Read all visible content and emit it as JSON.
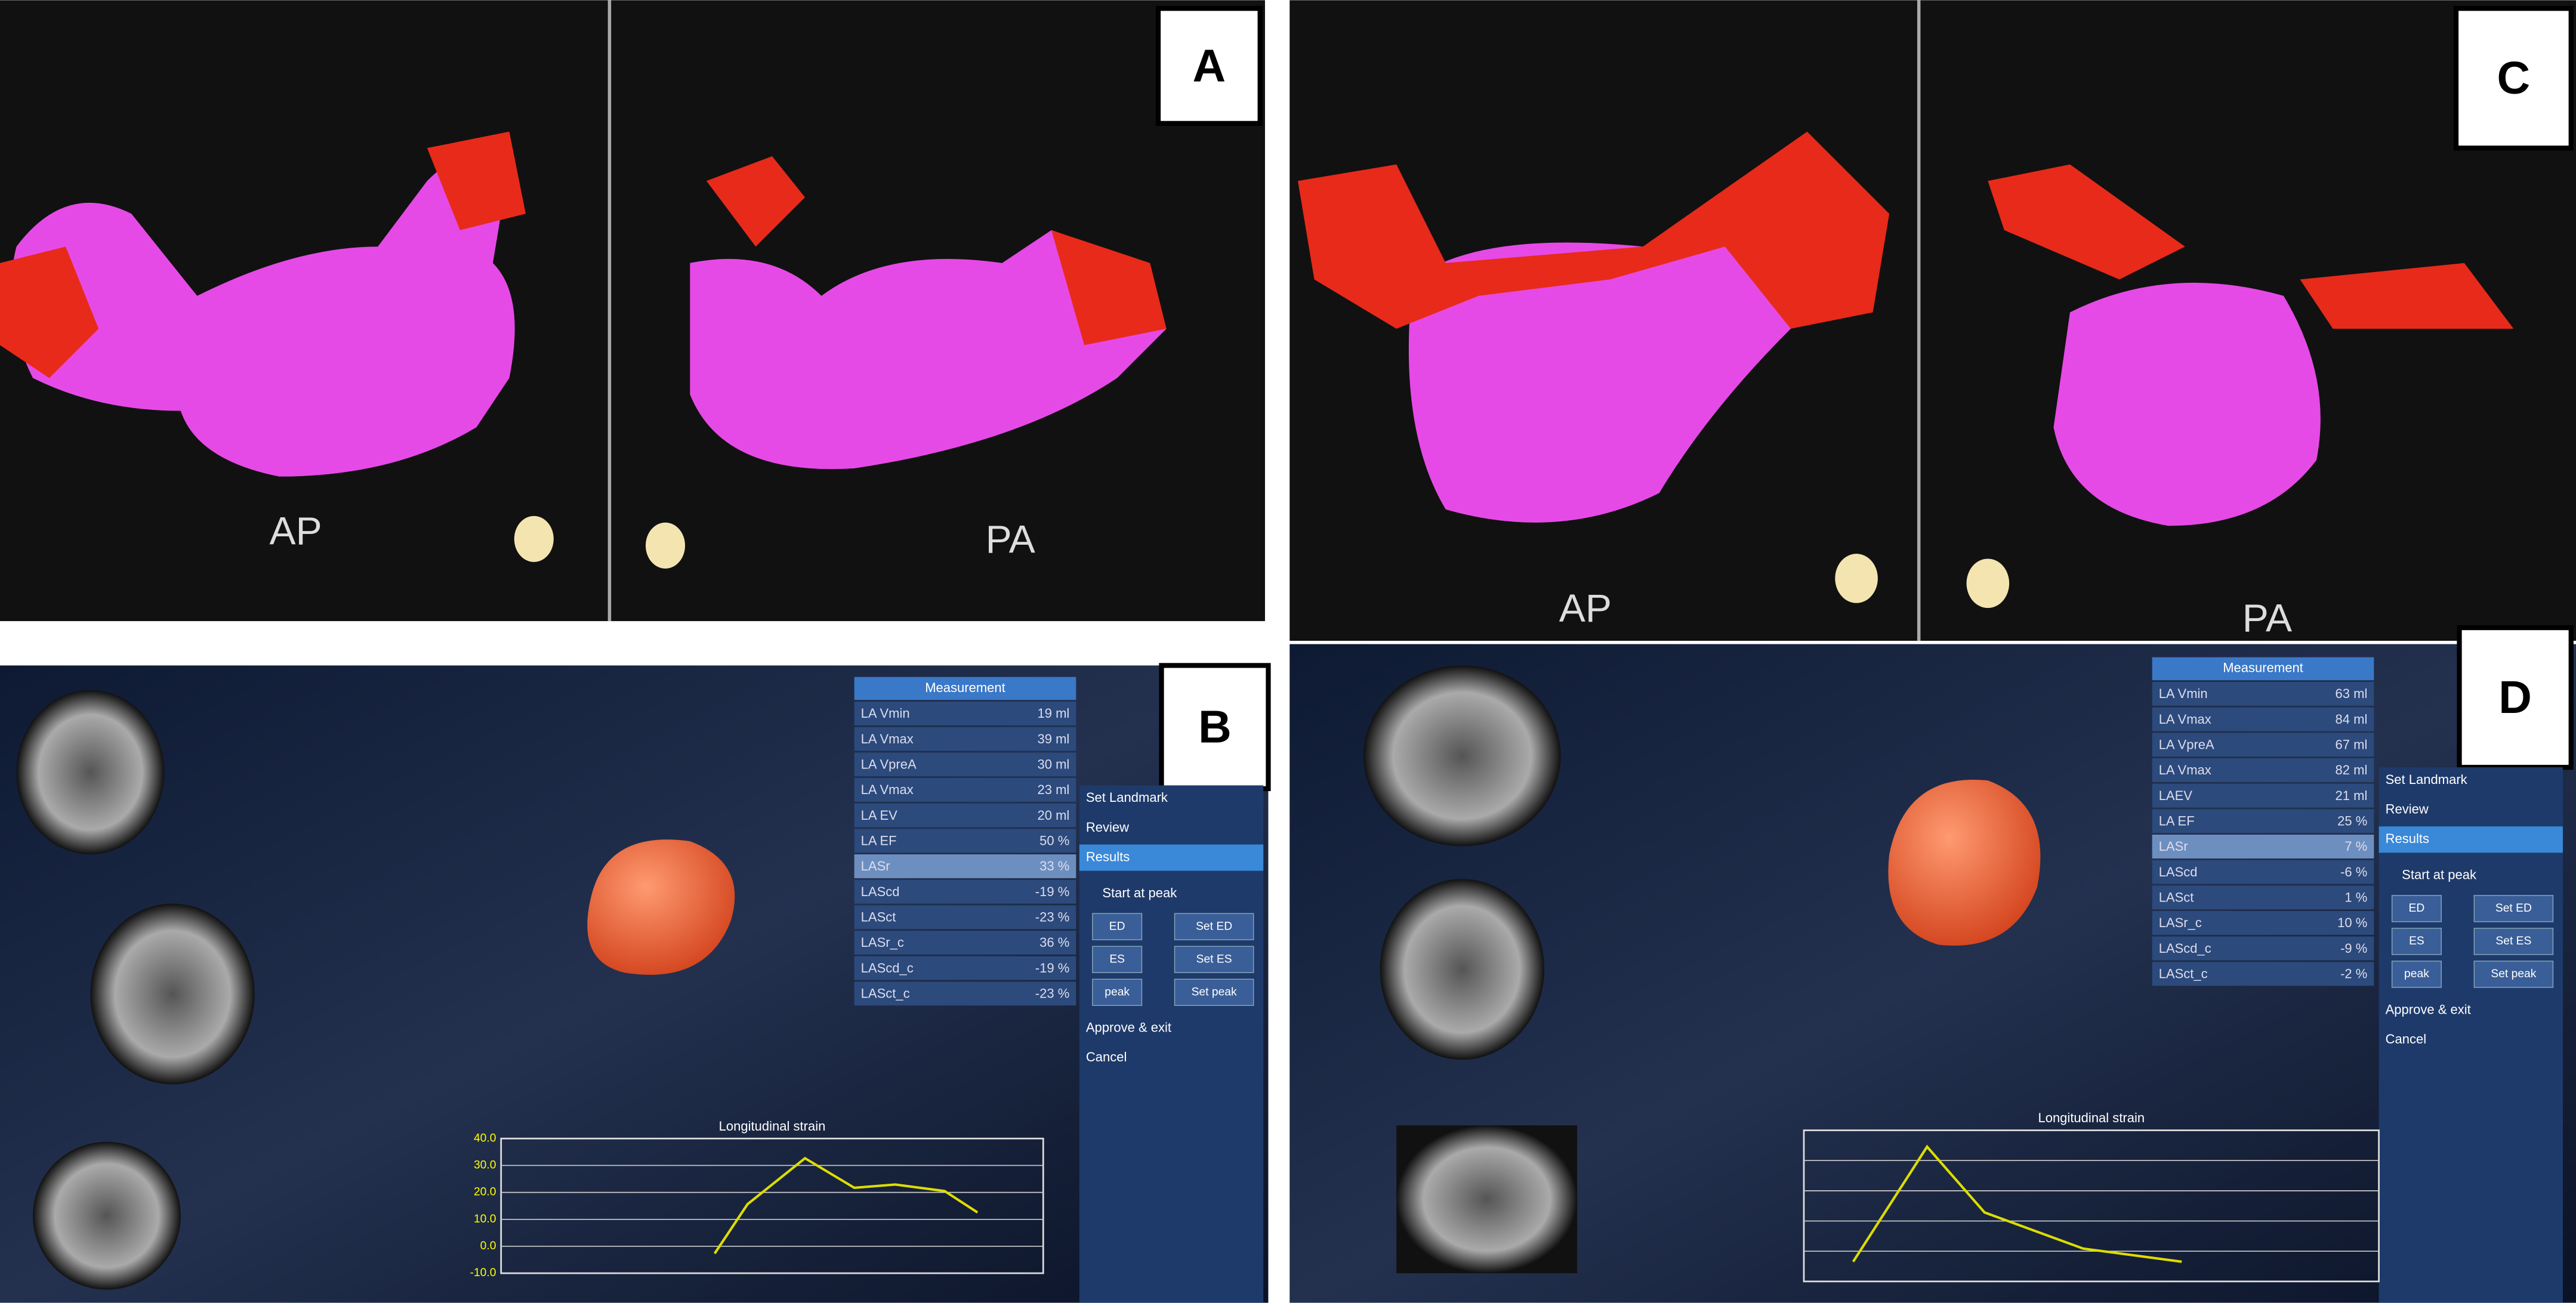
{
  "panels": [
    {
      "label": "A",
      "views": [
        "AP",
        "PA"
      ]
    },
    {
      "label": "B",
      "table_header": "Measurement",
      "rows": [
        [
          "LA Vmin",
          "19 ml"
        ],
        [
          "LA Vmax",
          "39 ml"
        ],
        [
          "LA VpreA",
          "30 ml"
        ],
        [
          "LA Vmax",
          "23 ml"
        ],
        [
          "LA EV",
          "20 ml"
        ],
        [
          "LA EF",
          "50 %"
        ],
        [
          "LASr",
          "33 %"
        ],
        [
          "LAScd",
          "-19 %"
        ],
        [
          "LASct",
          "-23 %"
        ],
        [
          "LASr_c",
          "36 %"
        ],
        [
          "LAScd_c",
          "-19 %"
        ],
        [
          "LASct_c",
          "-23 %"
        ]
      ],
      "menu": [
        "Set Landmark",
        "Review",
        "Results",
        "Start at peak",
        "Approve & exit",
        "Cancel"
      ],
      "buttons": [
        "ED",
        "Set ED",
        "ES",
        "Set ES",
        "peak",
        "Set peak"
      ],
      "chart_title": "Longitudinal strain",
      "chart_ticks": [
        "40.0",
        "30.0",
        "20.0",
        "10.0",
        "0.0",
        "-10.0"
      ]
    },
    {
      "label": "C",
      "views": [
        "AP",
        "PA"
      ]
    },
    {
      "label": "D",
      "table_header": "Measurement",
      "rows": [
        [
          "LA Vmin",
          "63 ml"
        ],
        [
          "LA Vmax",
          "84 ml"
        ],
        [
          "LA VpreA",
          "67 ml"
        ],
        [
          "LA Vmax",
          "82 ml"
        ],
        [
          "LAEV",
          "21 ml"
        ],
        [
          "LA EF",
          "25 %"
        ],
        [
          "LASr",
          "7 %"
        ],
        [
          "LAScd",
          "-6 %"
        ],
        [
          "LASct",
          "1 %"
        ],
        [
          "LASr_c",
          "10 %"
        ],
        [
          "LAScd_c",
          "-9 %"
        ],
        [
          "LASct_c",
          "-2 %"
        ]
      ],
      "menu": [
        "Set Landmark",
        "Review",
        "Results",
        "Start at peak",
        "Approve & exit",
        "Cancel"
      ],
      "buttons": [
        "ED",
        "Set ED",
        "ES",
        "Set ES",
        "peak",
        "Set peak"
      ],
      "chart_title": "Longitudinal strain"
    }
  ]
}
